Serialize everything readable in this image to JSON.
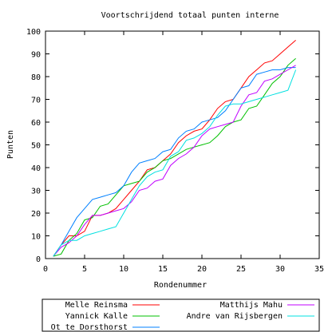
{
  "chart_data": {
    "type": "line",
    "title": "Voortschrijdend totaal punten interne",
    "xlabel": "Rondenummer",
    "ylabel": "Punten",
    "xlim": [
      0,
      35
    ],
    "ylim": [
      0,
      100
    ],
    "xticks": [
      0,
      5,
      10,
      15,
      20,
      25,
      30,
      35
    ],
    "yticks": [
      0,
      10,
      20,
      30,
      40,
      50,
      60,
      70,
      80,
      90,
      100
    ],
    "grid": false,
    "legend_position": "bottom",
    "series": [
      {
        "name": "Melle Reinsma",
        "color": "#ff0000",
        "x": [
          1,
          2,
          3,
          4,
          5,
          6,
          7,
          8,
          9,
          10,
          11,
          12,
          13,
          14,
          15,
          16,
          17,
          18,
          19,
          20,
          21,
          22,
          23,
          24,
          25,
          26,
          27,
          28,
          29,
          30,
          31,
          32
        ],
        "y": [
          1,
          6,
          10,
          10,
          12,
          19,
          19,
          20,
          22,
          26,
          30,
          34,
          39,
          40,
          43,
          46,
          51,
          54,
          56,
          57,
          61,
          66,
          69,
          70,
          75,
          80,
          83,
          86,
          87,
          90,
          93,
          96
        ]
      },
      {
        "name": "Yannick Kalle",
        "color": "#00c000",
        "x": [
          1,
          2,
          3,
          4,
          5,
          6,
          7,
          8,
          9,
          10,
          11,
          12,
          13,
          14,
          15,
          16,
          17,
          18,
          19,
          20,
          21,
          22,
          23,
          24,
          25,
          26,
          27,
          28,
          29,
          30,
          31,
          32
        ],
        "y": [
          1,
          2,
          8,
          11,
          17,
          18,
          23,
          24,
          28,
          32,
          33,
          34,
          38,
          40,
          43,
          44,
          46,
          48,
          49,
          50,
          51,
          54,
          58,
          60,
          61,
          66,
          67,
          72,
          77,
          80,
          85,
          88
        ]
      },
      {
        "name": "Ot te Dorsthorst",
        "color": "#0080ff",
        "x": [
          1,
          2,
          3,
          4,
          5,
          6,
          7,
          8,
          9,
          10,
          11,
          12,
          13,
          14,
          15,
          16,
          17,
          18,
          19,
          20,
          21,
          22,
          23,
          24,
          25,
          26,
          27,
          28,
          29,
          30,
          31,
          32
        ],
        "y": [
          1,
          6,
          12,
          18,
          22,
          26,
          27,
          28,
          29,
          32,
          38,
          42,
          43,
          44,
          47,
          48,
          53,
          56,
          57,
          60,
          61,
          62,
          65,
          70,
          75,
          76,
          81,
          82,
          83,
          83,
          84,
          84
        ]
      },
      {
        "name": "Matthijs Mahu",
        "color": "#c000ff",
        "x": [
          1,
          2,
          3,
          4,
          5,
          6,
          7,
          8,
          9,
          10,
          11,
          12,
          13,
          14,
          15,
          16,
          17,
          18,
          19,
          20,
          21,
          22,
          23,
          24,
          25,
          26,
          27,
          28,
          29,
          30,
          31,
          32
        ],
        "y": [
          1,
          5,
          7,
          10,
          15,
          19,
          19,
          20,
          21,
          22,
          25,
          30,
          31,
          34,
          35,
          41,
          44,
          46,
          49,
          54,
          57,
          58,
          59,
          60,
          67,
          72,
          73,
          78,
          79,
          81,
          83,
          85
        ]
      },
      {
        "name": "Andre van Rijsbergen",
        "color": "#00e0e0",
        "x": [
          1,
          2,
          3,
          4,
          5,
          6,
          7,
          8,
          9,
          10,
          11,
          12,
          13,
          14,
          15,
          16,
          17,
          18,
          19,
          20,
          21,
          22,
          23,
          24,
          25,
          26,
          27,
          28,
          29,
          30,
          31,
          32
        ],
        "y": [
          1,
          6,
          8,
          8,
          10,
          11,
          12,
          13,
          14,
          20,
          26,
          32,
          36,
          38,
          39,
          45,
          47,
          52,
          53,
          55,
          58,
          63,
          67,
          68,
          68,
          69,
          70,
          71,
          72,
          73,
          74,
          83
        ]
      }
    ]
  }
}
